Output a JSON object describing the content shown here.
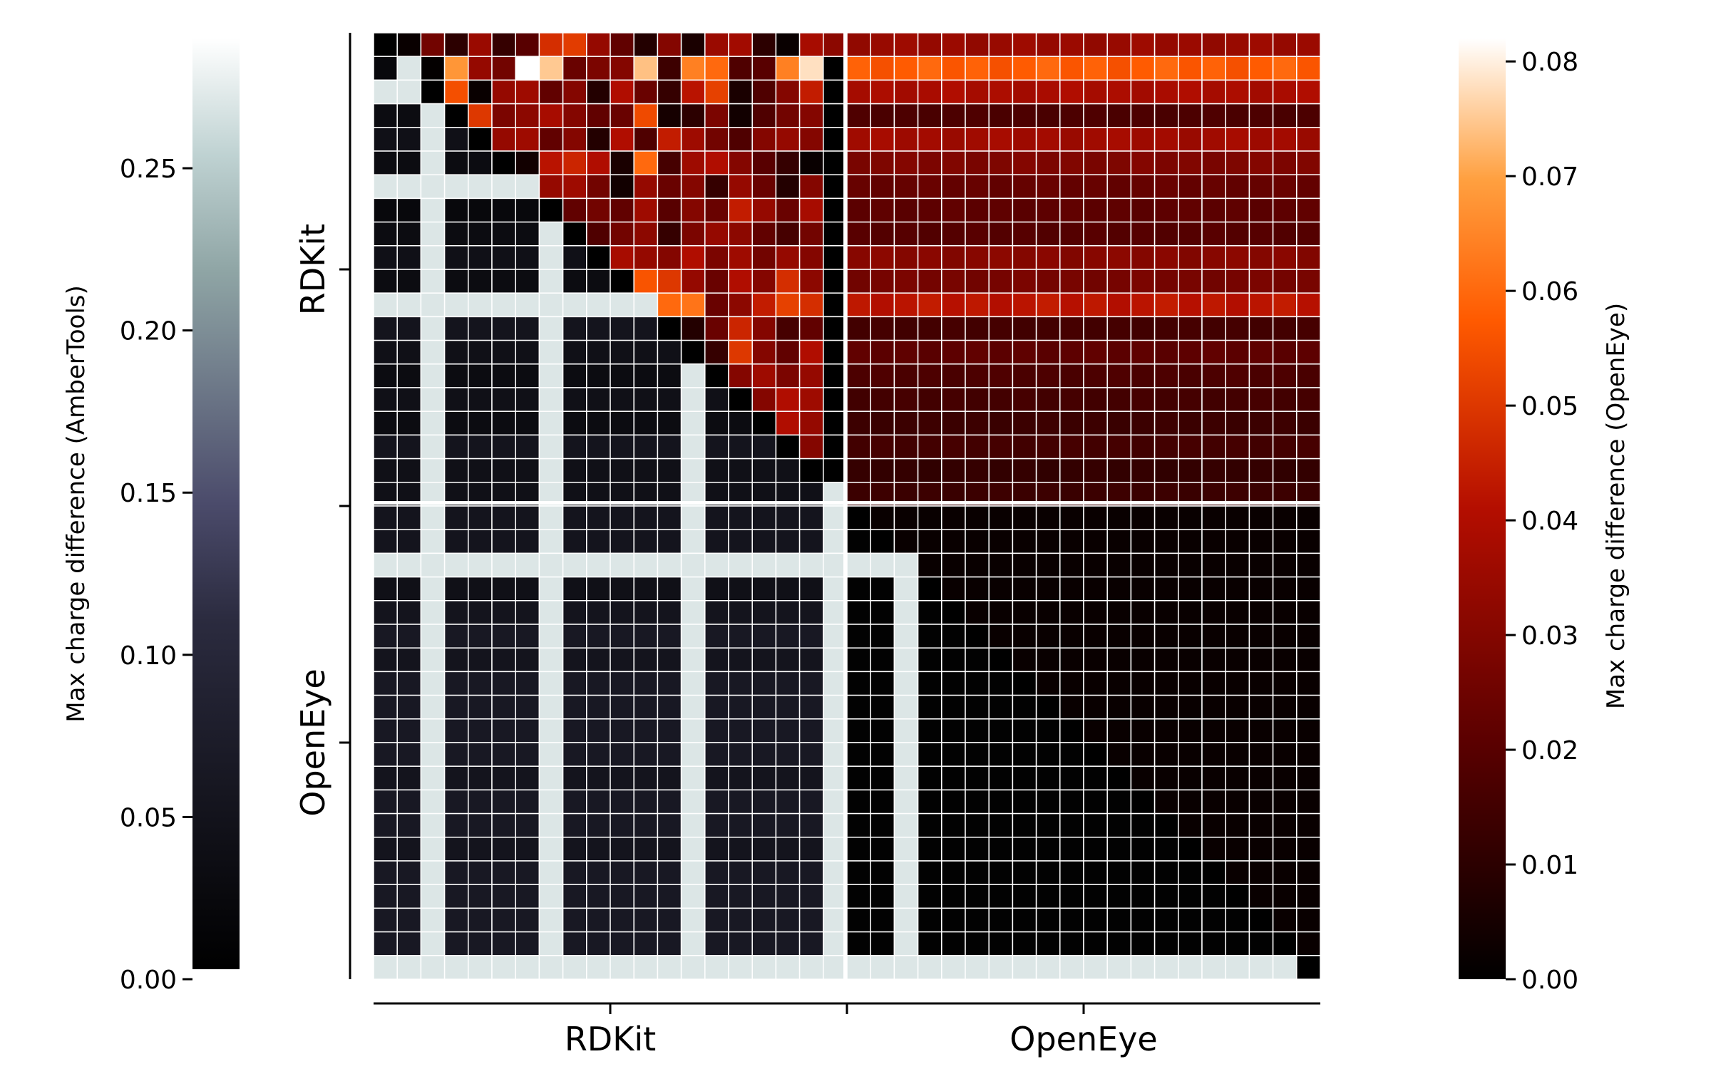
{
  "chart_data": {
    "type": "heatmap",
    "title": "",
    "n_cells": 40,
    "groups": [
      "RDKit",
      "OpenEye"
    ],
    "xlabel": "",
    "ylabel": "",
    "x_tick_labels": [
      "RDKit",
      "OpenEye"
    ],
    "y_tick_labels": [
      "RDKit",
      "OpenEye"
    ],
    "layout_note": "upper triangle (red colormap) = OpenEye charge differences; lower triangle (bone colormap) = AmberTools charge differences; 20 RDKit + 20 OpenEye conformers",
    "colorbar_left": {
      "label": "Max charge difference (AmberTools)",
      "colormap": "bone",
      "range": [
        0.0,
        0.29
      ],
      "ticks": [
        "0.00",
        "0.05",
        "0.10",
        "0.15",
        "0.20",
        "0.25"
      ],
      "tick_values": [
        0.0,
        0.05,
        0.1,
        0.15,
        0.2,
        0.25
      ]
    },
    "colorbar_right": {
      "label": "Max charge difference (OpenEye)",
      "colormap": "gist_heat",
      "range": [
        0.0,
        0.082
      ],
      "ticks": [
        "0.00",
        "0.01",
        "0.02",
        "0.03",
        "0.04",
        "0.05",
        "0.06",
        "0.07",
        "0.08"
      ],
      "tick_values": [
        0.0,
        0.01,
        0.02,
        0.03,
        0.04,
        0.05,
        0.06,
        0.07,
        0.08
      ]
    },
    "values_openeye_upper": {
      "rdkit_rdkit_rows": [
        [
          null,
          0.002,
          0.026,
          0.01,
          0.035,
          0.012,
          0.02,
          0.048,
          0.051,
          0.034,
          0.022,
          0.008,
          0.03,
          0.006,
          0.035,
          0.037,
          0.01,
          0.002,
          0.038,
          0.032
        ],
        [
          0.0,
          null,
          0.001,
          0.068,
          0.034,
          0.026,
          0.082,
          0.075,
          0.024,
          0.028,
          0.03,
          0.074,
          0.014,
          0.064,
          0.06,
          0.018,
          0.02,
          0.064,
          0.078
        ],
        [
          0.0,
          0.0,
          null,
          0.055,
          0.002,
          0.034,
          0.036,
          0.022,
          0.03,
          0.008,
          0.04,
          0.024,
          0.012,
          0.042,
          0.052,
          0.006,
          0.018,
          0.03,
          0.044
        ],
        [
          0.0,
          0.0,
          0.0,
          null,
          0.05,
          0.028,
          0.032,
          0.038,
          0.03,
          0.022,
          0.024,
          0.054,
          0.005,
          0.01,
          0.028,
          0.004,
          0.018,
          0.026,
          0.03
        ],
        [
          0.0,
          0.0,
          0.0,
          0.0,
          null,
          0.034,
          0.036,
          0.022,
          0.03,
          0.008,
          0.04,
          0.018,
          0.044,
          0.036,
          0.026,
          0.018,
          0.03,
          0.034,
          0.03
        ],
        [
          0.0,
          0.0,
          0.0,
          0.0,
          0.0,
          null,
          0.004,
          0.042,
          0.046,
          0.04,
          0.006,
          0.06,
          0.016,
          0.036,
          0.04,
          0.03,
          0.02,
          0.012,
          0.002
        ],
        [
          0.0,
          0.0,
          0.0,
          0.0,
          0.0,
          0.0,
          null,
          0.034,
          0.036,
          0.026,
          0.004,
          0.034,
          0.024,
          0.03,
          0.012,
          0.034,
          0.024,
          0.008,
          0.03
        ],
        [
          0.0,
          0.0,
          0.0,
          0.0,
          0.0,
          0.0,
          0.0,
          null,
          0.022,
          0.026,
          0.022,
          0.036,
          0.02,
          0.03,
          0.024,
          0.044,
          0.034,
          0.024,
          0.038
        ],
        [
          0.0,
          0.0,
          0.0,
          0.0,
          0.0,
          0.0,
          0.0,
          0.0,
          null,
          0.018,
          0.026,
          0.032,
          0.012,
          0.028,
          0.034,
          0.032,
          0.022,
          0.016,
          0.026
        ],
        [
          0.0,
          0.0,
          0.0,
          0.0,
          0.0,
          0.0,
          0.0,
          0.0,
          0.0,
          null,
          0.038,
          0.034,
          0.03,
          0.04,
          0.028,
          0.036,
          0.026,
          0.034,
          0.03
        ],
        [
          0.0,
          0.0,
          0.0,
          0.0,
          0.0,
          0.0,
          0.0,
          0.0,
          0.0,
          0.0,
          null,
          0.056,
          0.05,
          0.034,
          0.024,
          0.04,
          0.03,
          0.048,
          0.032
        ],
        [
          0.0,
          0.0,
          0.0,
          0.0,
          0.0,
          0.0,
          0.0,
          0.0,
          0.0,
          0.0,
          0.0,
          null,
          0.06,
          0.062,
          0.024,
          0.032,
          0.044,
          0.052,
          0.048
        ],
        [
          0.0,
          0.0,
          0.0,
          0.0,
          0.0,
          0.0,
          0.0,
          0.0,
          0.0,
          0.0,
          0.0,
          0.0,
          null,
          0.008,
          0.024,
          0.046,
          0.03,
          0.016,
          0.022
        ],
        [
          0.0,
          0.0,
          0.0,
          0.0,
          0.0,
          0.0,
          0.0,
          0.0,
          0.0,
          0.0,
          0.0,
          0.0,
          0.0,
          null,
          0.012,
          0.05,
          0.03,
          0.022,
          0.04
        ],
        [
          0.0,
          0.0,
          0.0,
          0.0,
          0.0,
          0.0,
          0.0,
          0.0,
          0.0,
          0.0,
          0.0,
          0.0,
          0.0,
          0.0,
          null,
          0.03,
          0.036,
          0.028,
          0.034
        ],
        [
          0.0,
          0.0,
          0.0,
          0.0,
          0.0,
          0.0,
          0.0,
          0.0,
          0.0,
          0.0,
          0.0,
          0.0,
          0.0,
          0.0,
          0.0,
          null,
          0.03,
          0.04,
          0.036
        ],
        [
          0.0,
          0.0,
          0.0,
          0.0,
          0.0,
          0.0,
          0.0,
          0.0,
          0.0,
          0.0,
          0.0,
          0.0,
          0.0,
          0.0,
          0.0,
          0.0,
          null,
          0.04,
          0.034
        ],
        [
          0.0,
          0.0,
          0.0,
          0.0,
          0.0,
          0.0,
          0.0,
          0.0,
          0.0,
          0.0,
          0.0,
          0.0,
          0.0,
          0.0,
          0.0,
          0.0,
          0.0,
          null,
          0.03
        ],
        [
          0.0,
          0.0,
          0.0,
          0.0,
          0.0,
          0.0,
          0.0,
          0.0,
          0.0,
          0.0,
          0.0,
          0.0,
          0.0,
          0.0,
          0.0,
          0.0,
          0.0,
          0.0,
          null
        ],
        [
          0.0,
          0.0,
          0.0,
          0.0,
          0.0,
          0.0,
          0.0,
          0.0,
          0.0,
          0.0,
          0.0,
          0.0,
          0.0,
          0.0,
          0.0,
          0.0,
          0.0,
          0.0,
          0.0
        ]
      ],
      "rdkit_vs_openeye_row_levels": [
        0.036,
        0.06,
        0.04,
        0.018,
        0.038,
        0.03,
        0.024,
        0.022,
        0.02,
        0.032,
        0.028,
        0.044,
        0.016,
        0.022,
        0.018,
        0.016,
        0.014,
        0.016,
        0.012,
        0.014
      ],
      "openeye_openeye": 0.002
    },
    "values_ambertools_lower": {
      "row_levels": [
        0.02,
        0.02,
        0.27,
        0.03,
        0.04,
        0.03,
        0.27,
        0.02,
        0.03,
        0.04,
        0.03,
        0.27,
        0.05,
        0.04,
        0.03,
        0.04,
        0.03,
        0.05,
        0.04,
        0.04,
        0.05,
        0.05,
        0.27,
        0.04,
        0.05,
        0.06,
        0.05,
        0.06,
        0.06,
        0.06,
        0.06,
        0.05,
        0.06,
        0.06,
        0.05,
        0.06,
        0.06,
        0.06,
        0.06,
        0.27
      ],
      "bright_columns": [
        2,
        7,
        13,
        19,
        22
      ],
      "openeye_openeye_level": 0.004
    }
  }
}
